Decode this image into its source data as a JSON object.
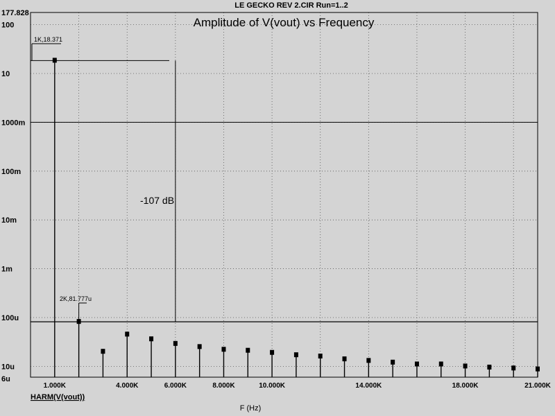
{
  "header": {
    "circuit_title": "LE GECKO REV 2.CIR Run=1..2"
  },
  "chart_data": {
    "type": "bar",
    "title": "Amplitude of V(vout) vs Frequency",
    "xlabel": "F (Hz)",
    "ylabel": "HARM(V(vout))",
    "x_scale": "linear",
    "y_scale": "log",
    "xlim": [
      0,
      21000
    ],
    "ylim": [
      6e-06,
      177.828
    ],
    "grid": true,
    "x_ticks": [
      {
        "value": 1000,
        "label": "1.000K"
      },
      {
        "value": 4000,
        "label": "4.000K"
      },
      {
        "value": 6000,
        "label": "6.000K"
      },
      {
        "value": 8000,
        "label": "8.000K"
      },
      {
        "value": 10000,
        "label": "10.000K"
      },
      {
        "value": 14000,
        "label": "14.000K"
      },
      {
        "value": 18000,
        "label": "18.000K"
      },
      {
        "value": 21000,
        "label": "21.000K"
      }
    ],
    "y_ticks": [
      {
        "value": 177.828,
        "label": "177.828"
      },
      {
        "value": 100,
        "label": "100"
      },
      {
        "value": 10,
        "label": "10"
      },
      {
        "value": 1,
        "label": "1000m"
      },
      {
        "value": 0.1,
        "label": "100m"
      },
      {
        "value": 0.01,
        "label": "10m"
      },
      {
        "value": 0.001,
        "label": "1m"
      },
      {
        "value": 0.0001,
        "label": "100u"
      },
      {
        "value": 1e-05,
        "label": "10u"
      },
      {
        "value": 6e-06,
        "label": "6u"
      }
    ],
    "series": [
      {
        "x": [
          1000,
          2000,
          3000,
          4000,
          5000,
          6000,
          7000,
          8000,
          9000,
          10000,
          11000,
          12000,
          13000,
          14000,
          15000,
          16000,
          17000,
          18000,
          19000,
          20000,
          21000
        ],
        "values": [
          18.371,
          8.1777e-05,
          2e-05,
          4.5e-05,
          3.6e-05,
          2.9e-05,
          2.5e-05,
          2.2e-05,
          2.1e-05,
          1.9e-05,
          1.7e-05,
          1.6e-05,
          1.4e-05,
          1.3e-05,
          1.2e-05,
          1.1e-05,
          1.1e-05,
          1e-05,
          9.5e-06,
          9.1e-06,
          8.7e-06
        ]
      }
    ],
    "annotations": {
      "label_1k": "1K,18.371",
      "label_2k": "2K,81.777u",
      "db_label": "-107 dB"
    },
    "colors": {
      "background": "#d4d4d4",
      "axis": "#000000",
      "grid": "#000000"
    }
  }
}
